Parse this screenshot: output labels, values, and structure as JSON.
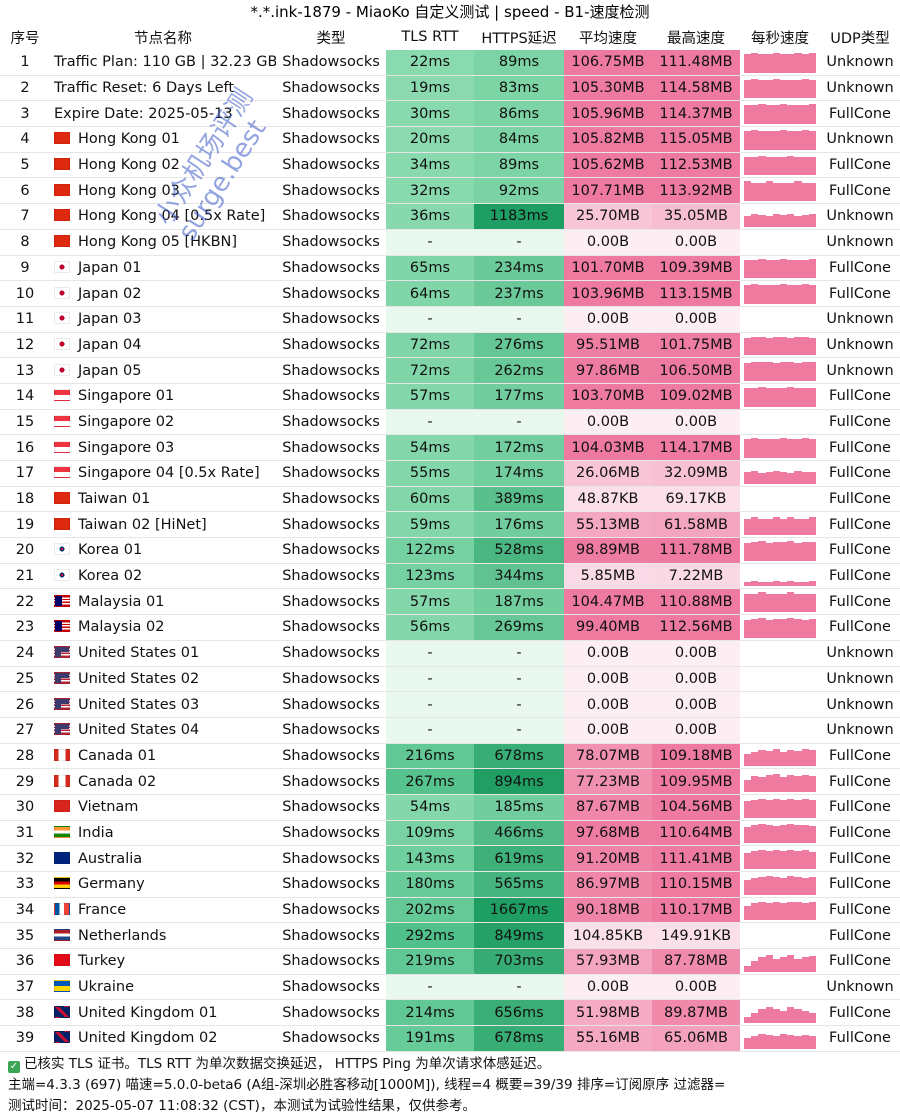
{
  "title": "*.*.ink-1879 - MiaoKo 自定义测试 | speed - B1-速度检测",
  "headers": [
    "序号",
    "节点名称",
    "类型",
    "TLS RTT",
    "HTTPS延迟",
    "平均速度",
    "最高速度",
    "每秒速度",
    "UDP类型"
  ],
  "rows": [
    {
      "no": "1",
      "flag": "",
      "name": "Traffic Plan: 110 GB | 32.23 GB",
      "type": "Shadowsocks",
      "tls": "22ms",
      "https": "89ms",
      "avg": "106.75MB",
      "max": "111.48MB",
      "udp": "Unknown",
      "spark": [
        0.9,
        0.95,
        0.9,
        0.9,
        0.95,
        0.9,
        0.9,
        0.95,
        0.9,
        0.95
      ]
    },
    {
      "no": "2",
      "flag": "",
      "name": "Traffic Reset: 6 Days Left",
      "type": "Shadowsocks",
      "tls": "19ms",
      "https": "83ms",
      "avg": "105.30MB",
      "max": "114.58MB",
      "udp": "Unknown",
      "spark": [
        0.9,
        0.95,
        0.9,
        0.9,
        0.95,
        0.9,
        0.9,
        0.9,
        0.95,
        0.9
      ]
    },
    {
      "no": "3",
      "flag": "",
      "name": "Expire Date: 2025-05-13",
      "type": "Shadowsocks",
      "tls": "30ms",
      "https": "86ms",
      "avg": "105.96MB",
      "max": "114.37MB",
      "udp": "FullCone",
      "spark": [
        0.9,
        0.9,
        0.95,
        0.9,
        0.9,
        0.95,
        0.9,
        0.9,
        0.9,
        0.95
      ]
    },
    {
      "no": "4",
      "flag": "hk",
      "name": "Hong Kong 01",
      "type": "Shadowsocks",
      "tls": "20ms",
      "https": "84ms",
      "avg": "105.82MB",
      "max": "115.05MB",
      "udp": "Unknown",
      "spark": [
        0.9,
        0.95,
        0.9,
        0.9,
        0.9,
        0.95,
        0.9,
        0.9,
        0.95,
        0.9
      ]
    },
    {
      "no": "5",
      "flag": "hk",
      "name": "Hong Kong 02",
      "type": "Shadowsocks",
      "tls": "34ms",
      "https": "89ms",
      "avg": "105.62MB",
      "max": "112.53MB",
      "udp": "FullCone",
      "spark": [
        0.9,
        0.9,
        0.95,
        0.9,
        0.9,
        0.9,
        0.95,
        0.9,
        0.9,
        0.9
      ]
    },
    {
      "no": "6",
      "flag": "hk",
      "name": "Hong Kong 03",
      "type": "Shadowsocks",
      "tls": "32ms",
      "https": "92ms",
      "avg": "107.71MB",
      "max": "113.92MB",
      "udp": "FullCone",
      "spark": [
        0.95,
        0.9,
        0.9,
        0.95,
        0.9,
        0.9,
        0.9,
        0.95,
        0.9,
        0.9
      ]
    },
    {
      "no": "7",
      "flag": "hk",
      "name": "Hong Kong 04 [0.5x Rate]",
      "type": "Shadowsocks",
      "tls": "36ms",
      "https": "1183ms",
      "avg": "25.70MB",
      "max": "35.05MB",
      "udp": "Unknown",
      "spark": [
        0.5,
        0.6,
        0.55,
        0.5,
        0.6,
        0.55,
        0.6,
        0.5,
        0.55,
        0.6
      ]
    },
    {
      "no": "8",
      "flag": "hk",
      "name": "Hong Kong 05 [HKBN]",
      "type": "Shadowsocks",
      "tls": "-",
      "https": "-",
      "avg": "0.00B",
      "max": "0.00B",
      "udp": "Unknown",
      "spark": []
    },
    {
      "no": "9",
      "flag": "jp",
      "name": "Japan 01",
      "type": "Shadowsocks",
      "tls": "65ms",
      "https": "234ms",
      "avg": "101.70MB",
      "max": "109.39MB",
      "udp": "FullCone",
      "spark": [
        0.9,
        0.9,
        0.95,
        0.9,
        0.9,
        0.95,
        0.9,
        0.9,
        0.9,
        0.95
      ]
    },
    {
      "no": "10",
      "flag": "jp",
      "name": "Japan 02",
      "type": "Shadowsocks",
      "tls": "64ms",
      "https": "237ms",
      "avg": "103.96MB",
      "max": "113.15MB",
      "udp": "FullCone",
      "spark": [
        0.9,
        0.95,
        0.9,
        0.9,
        0.9,
        0.95,
        0.9,
        0.9,
        0.95,
        0.9
      ]
    },
    {
      "no": "11",
      "flag": "jp",
      "name": "Japan 03",
      "type": "Shadowsocks",
      "tls": "-",
      "https": "-",
      "avg": "0.00B",
      "max": "0.00B",
      "udp": "Unknown",
      "spark": []
    },
    {
      "no": "12",
      "flag": "jp",
      "name": "Japan 04",
      "type": "Shadowsocks",
      "tls": "72ms",
      "https": "276ms",
      "avg": "95.51MB",
      "max": "101.75MB",
      "udp": "Unknown",
      "spark": [
        0.85,
        0.9,
        0.9,
        0.85,
        0.9,
        0.9,
        0.85,
        0.9,
        0.9,
        0.85
      ]
    },
    {
      "no": "13",
      "flag": "jp",
      "name": "Japan 05",
      "type": "Shadowsocks",
      "tls": "72ms",
      "https": "262ms",
      "avg": "97.86MB",
      "max": "106.50MB",
      "udp": "Unknown",
      "spark": [
        0.85,
        0.9,
        0.9,
        0.9,
        0.85,
        0.9,
        0.9,
        0.85,
        0.9,
        0.9
      ]
    },
    {
      "no": "14",
      "flag": "sg",
      "name": "Singapore 01",
      "type": "Shadowsocks",
      "tls": "57ms",
      "https": "177ms",
      "avg": "103.70MB",
      "max": "109.02MB",
      "udp": "FullCone",
      "spark": [
        0.9,
        0.9,
        0.95,
        0.9,
        0.9,
        0.9,
        0.95,
        0.9,
        0.9,
        0.9
      ]
    },
    {
      "no": "15",
      "flag": "sg",
      "name": "Singapore 02",
      "type": "Shadowsocks",
      "tls": "-",
      "https": "-",
      "avg": "0.00B",
      "max": "0.00B",
      "udp": "FullCone",
      "spark": []
    },
    {
      "no": "16",
      "flag": "sg",
      "name": "Singapore 03",
      "type": "Shadowsocks",
      "tls": "54ms",
      "https": "172ms",
      "avg": "104.03MB",
      "max": "114.17MB",
      "udp": "FullCone",
      "spark": [
        0.9,
        0.95,
        0.9,
        0.9,
        0.9,
        0.95,
        0.9,
        0.9,
        0.95,
        0.9
      ]
    },
    {
      "no": "17",
      "flag": "sg",
      "name": "Singapore 04 [0.5x Rate]",
      "type": "Shadowsocks",
      "tls": "55ms",
      "https": "174ms",
      "avg": "26.06MB",
      "max": "32.09MB",
      "udp": "FullCone",
      "spark": [
        0.55,
        0.6,
        0.5,
        0.55,
        0.6,
        0.55,
        0.5,
        0.6,
        0.55,
        0.55
      ]
    },
    {
      "no": "18",
      "flag": "cn",
      "name": "Taiwan 01",
      "type": "Shadowsocks",
      "tls": "60ms",
      "https": "389ms",
      "avg": "48.87KB",
      "max": "69.17KB",
      "udp": "FullCone",
      "spark": []
    },
    {
      "no": "19",
      "flag": "cn",
      "name": "Taiwan 02 [HiNet]",
      "type": "Shadowsocks",
      "tls": "59ms",
      "https": "176ms",
      "avg": "55.13MB",
      "max": "61.58MB",
      "udp": "FullCone",
      "spark": [
        0.8,
        0.85,
        0.8,
        0.8,
        0.85,
        0.8,
        0.85,
        0.8,
        0.8,
        0.85
      ]
    },
    {
      "no": "20",
      "flag": "kr",
      "name": "Korea 01",
      "type": "Shadowsocks",
      "tls": "122ms",
      "https": "528ms",
      "avg": "98.89MB",
      "max": "111.78MB",
      "udp": "FullCone",
      "spark": [
        0.85,
        0.9,
        0.95,
        0.85,
        0.9,
        0.9,
        0.95,
        0.85,
        0.9,
        0.9
      ]
    },
    {
      "no": "21",
      "flag": "kr",
      "name": "Korea 02",
      "type": "Shadowsocks",
      "tls": "123ms",
      "https": "344ms",
      "avg": "5.85MB",
      "max": "7.22MB",
      "udp": "FullCone",
      "spark": [
        0.2,
        0.25,
        0.2,
        0.2,
        0.25,
        0.2,
        0.25,
        0.2,
        0.2,
        0.25
      ]
    },
    {
      "no": "22",
      "flag": "my",
      "name": "Malaysia 01",
      "type": "Shadowsocks",
      "tls": "57ms",
      "https": "187ms",
      "avg": "104.47MB",
      "max": "110.88MB",
      "udp": "FullCone",
      "spark": [
        0.9,
        0.9,
        0.95,
        0.9,
        0.9,
        0.9,
        0.95,
        0.9,
        0.9,
        0.9
      ]
    },
    {
      "no": "23",
      "flag": "my",
      "name": "Malaysia 02",
      "type": "Shadowsocks",
      "tls": "56ms",
      "https": "269ms",
      "avg": "99.40MB",
      "max": "112.56MB",
      "udp": "FullCone",
      "spark": [
        0.85,
        0.9,
        0.95,
        0.85,
        0.9,
        0.9,
        0.95,
        0.9,
        0.85,
        0.9
      ]
    },
    {
      "no": "24",
      "flag": "us",
      "name": "United States 01",
      "type": "Shadowsocks",
      "tls": "-",
      "https": "-",
      "avg": "0.00B",
      "max": "0.00B",
      "udp": "Unknown",
      "spark": []
    },
    {
      "no": "25",
      "flag": "us",
      "name": "United States 02",
      "type": "Shadowsocks",
      "tls": "-",
      "https": "-",
      "avg": "0.00B",
      "max": "0.00B",
      "udp": "Unknown",
      "spark": []
    },
    {
      "no": "26",
      "flag": "us",
      "name": "United States 03",
      "type": "Shadowsocks",
      "tls": "-",
      "https": "-",
      "avg": "0.00B",
      "max": "0.00B",
      "udp": "Unknown",
      "spark": []
    },
    {
      "no": "27",
      "flag": "us",
      "name": "United States 04",
      "type": "Shadowsocks",
      "tls": "-",
      "https": "-",
      "avg": "0.00B",
      "max": "0.00B",
      "udp": "Unknown",
      "spark": []
    },
    {
      "no": "28",
      "flag": "ca",
      "name": "Canada 01",
      "type": "Shadowsocks",
      "tls": "216ms",
      "https": "678ms",
      "avg": "78.07MB",
      "max": "109.18MB",
      "udp": "FullCone",
      "spark": [
        0.6,
        0.7,
        0.8,
        0.75,
        0.85,
        0.7,
        0.8,
        0.75,
        0.85,
        0.8
      ]
    },
    {
      "no": "29",
      "flag": "ca",
      "name": "Canada 02",
      "type": "Shadowsocks",
      "tls": "267ms",
      "https": "894ms",
      "avg": "77.23MB",
      "max": "109.95MB",
      "udp": "FullCone",
      "spark": [
        0.6,
        0.75,
        0.7,
        0.8,
        0.85,
        0.7,
        0.8,
        0.75,
        0.8,
        0.75
      ]
    },
    {
      "no": "30",
      "flag": "vn",
      "name": "Vietnam",
      "type": "Shadowsocks",
      "tls": "54ms",
      "https": "185ms",
      "avg": "87.67MB",
      "max": "104.56MB",
      "udp": "FullCone",
      "spark": [
        0.8,
        0.85,
        0.9,
        0.85,
        0.9,
        0.85,
        0.9,
        0.85,
        0.9,
        0.85
      ]
    },
    {
      "no": "31",
      "flag": "in",
      "name": "India",
      "type": "Shadowsocks",
      "tls": "109ms",
      "https": "466ms",
      "avg": "97.68MB",
      "max": "110.64MB",
      "udp": "FullCone",
      "spark": [
        0.8,
        0.9,
        0.95,
        0.9,
        0.85,
        0.9,
        0.95,
        0.9,
        0.9,
        0.85
      ]
    },
    {
      "no": "32",
      "flag": "au",
      "name": "Australia",
      "type": "Shadowsocks",
      "tls": "143ms",
      "https": "619ms",
      "avg": "91.20MB",
      "max": "111.41MB",
      "udp": "FullCone",
      "spark": [
        0.75,
        0.85,
        0.9,
        0.85,
        0.9,
        0.85,
        0.9,
        0.85,
        0.9,
        0.8
      ]
    },
    {
      "no": "33",
      "flag": "de",
      "name": "Germany",
      "type": "Shadowsocks",
      "tls": "180ms",
      "https": "565ms",
      "avg": "86.97MB",
      "max": "110.15MB",
      "udp": "FullCone",
      "spark": [
        0.7,
        0.8,
        0.85,
        0.9,
        0.85,
        0.8,
        0.9,
        0.85,
        0.8,
        0.85
      ]
    },
    {
      "no": "34",
      "flag": "fr",
      "name": "France",
      "type": "Shadowsocks",
      "tls": "202ms",
      "https": "1667ms",
      "avg": "90.18MB",
      "max": "110.17MB",
      "udp": "FullCone",
      "spark": [
        0.7,
        0.85,
        0.9,
        0.85,
        0.9,
        0.85,
        0.9,
        0.9,
        0.85,
        0.9
      ]
    },
    {
      "no": "35",
      "flag": "nl",
      "name": "Netherlands",
      "type": "Shadowsocks",
      "tls": "292ms",
      "https": "849ms",
      "avg": "104.85KB",
      "max": "149.91KB",
      "udp": "FullCone",
      "spark": []
    },
    {
      "no": "36",
      "flag": "tr",
      "name": "Turkey",
      "type": "Shadowsocks",
      "tls": "219ms",
      "https": "703ms",
      "avg": "57.93MB",
      "max": "87.78MB",
      "udp": "FullCone",
      "spark": [
        0.3,
        0.5,
        0.7,
        0.8,
        0.6,
        0.7,
        0.8,
        0.6,
        0.7,
        0.75
      ]
    },
    {
      "no": "37",
      "flag": "ua",
      "name": "Ukraine",
      "type": "Shadowsocks",
      "tls": "-",
      "https": "-",
      "avg": "0.00B",
      "max": "0.00B",
      "udp": "Unknown",
      "spark": []
    },
    {
      "no": "38",
      "flag": "gb",
      "name": "United Kingdom 01",
      "type": "Shadowsocks",
      "tls": "214ms",
      "https": "656ms",
      "avg": "51.98MB",
      "max": "89.87MB",
      "udp": "FullCone",
      "spark": [
        0.3,
        0.5,
        0.7,
        0.8,
        0.7,
        0.6,
        0.8,
        0.7,
        0.6,
        0.5
      ]
    },
    {
      "no": "39",
      "flag": "gb",
      "name": "United Kingdom 02",
      "type": "Shadowsocks",
      "tls": "191ms",
      "https": "678ms",
      "avg": "55.16MB",
      "max": "65.06MB",
      "udp": "FullCone",
      "spark": [
        0.5,
        0.6,
        0.7,
        0.65,
        0.6,
        0.7,
        0.65,
        0.6,
        0.65,
        0.6
      ]
    }
  ],
  "footer": {
    "line1": "已核实 TLS 证书。TLS RTT 为单次数据交换延迟， HTTPS Ping 为单次请求体感延迟。",
    "line2": "主端=4.3.3 (697) 喵速=5.0.0-beta6 (A组-深圳必胜客移动[1000M]), 线程=4 概要=39/39 排序=订阅原序 过滤器=",
    "line3": "测试时间：2025-05-07 11:08:32 (CST)，本测试为试验性结果，仅供参考。"
  },
  "watermark": {
    "line1": "小众机场评测",
    "line2": "surge.best"
  },
  "colors": {
    "tls_low": "#8fdcb2",
    "tls_high": "#4fc08a",
    "https_low": "#86d9ac",
    "https_high": "#1f9e63",
    "empty": "#e9f8ef",
    "speed_high": "#ee7a9f",
    "speed_low": "#fbe0ea",
    "speed_zero": "#fdeef3"
  }
}
